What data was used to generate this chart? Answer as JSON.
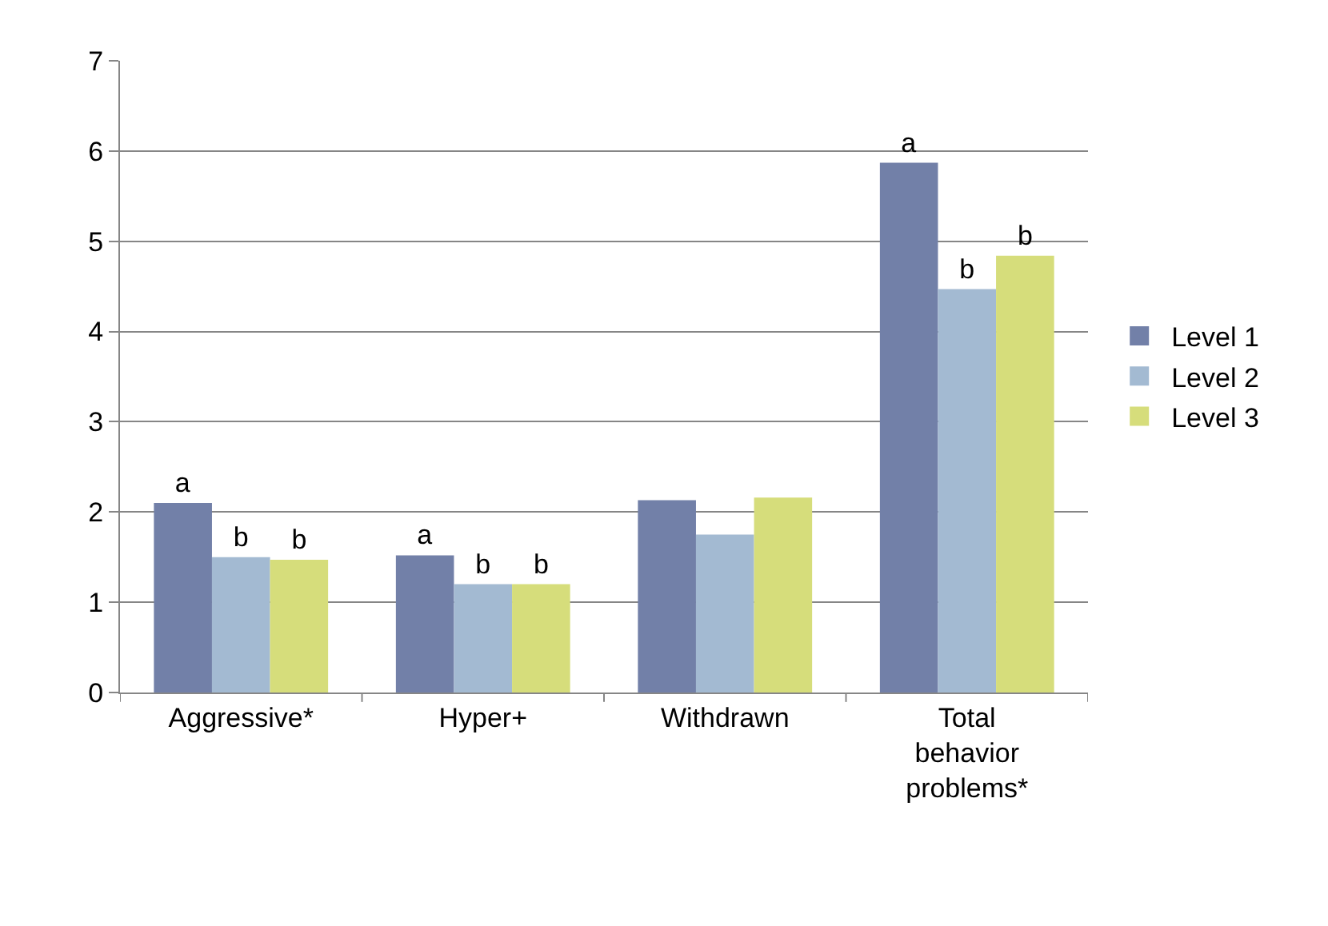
{
  "chart_data": {
    "type": "bar",
    "categories": [
      "Aggressive*",
      "Hyper+",
      "Withdrawn",
      "Total behavior problems*"
    ],
    "series": [
      {
        "name": "Level 1",
        "color": "#7280a8",
        "values": [
          2.1,
          1.52,
          2.13,
          5.87
        ],
        "value_labels": [
          "a",
          "a",
          null,
          "a"
        ]
      },
      {
        "name": "Level 2",
        "color": "#a3bad2",
        "values": [
          1.5,
          1.2,
          1.75,
          4.47
        ],
        "value_labels": [
          "b",
          "b",
          null,
          "b"
        ]
      },
      {
        "name": "Level 3",
        "color": "#d6dd7b",
        "values": [
          1.47,
          1.2,
          2.16,
          4.84
        ],
        "value_labels": [
          "b",
          "b",
          null,
          "b"
        ]
      }
    ],
    "ylim": [
      0,
      7
    ],
    "yticks": [
      0,
      1,
      2,
      3,
      4,
      5,
      6,
      7
    ],
    "grid": "y",
    "legend": "right"
  }
}
